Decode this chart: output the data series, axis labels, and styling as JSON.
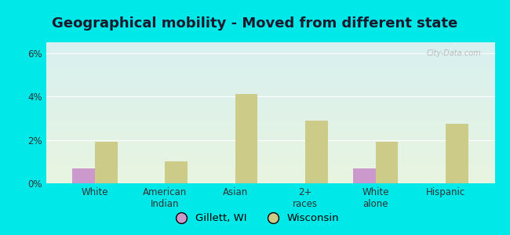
{
  "title": "Geographical mobility - Moved from different state",
  "categories": [
    "White",
    "American\nIndian",
    "Asian",
    "2+\nraces",
    "White\nalone",
    "Hispanic"
  ],
  "gillett_values": [
    0.7,
    0.0,
    0.0,
    0.0,
    0.7,
    0.0
  ],
  "wisconsin_values": [
    1.9,
    1.0,
    4.1,
    2.9,
    1.9,
    2.75
  ],
  "gillett_color": "#cc99cc",
  "wisconsin_color": "#cccc88",
  "background_top": "#d8f0f0",
  "background_bottom": "#e8f5e0",
  "outer_bg": "#00e8e8",
  "ylim": [
    0,
    6.5
  ],
  "yticks": [
    0,
    2,
    4,
    6
  ],
  "ytick_labels": [
    "0%",
    "2%",
    "4%",
    "6%"
  ],
  "title_fontsize": 13,
  "bar_width": 0.32,
  "legend_gillett": "Gillett, WI",
  "legend_wisconsin": "Wisconsin"
}
